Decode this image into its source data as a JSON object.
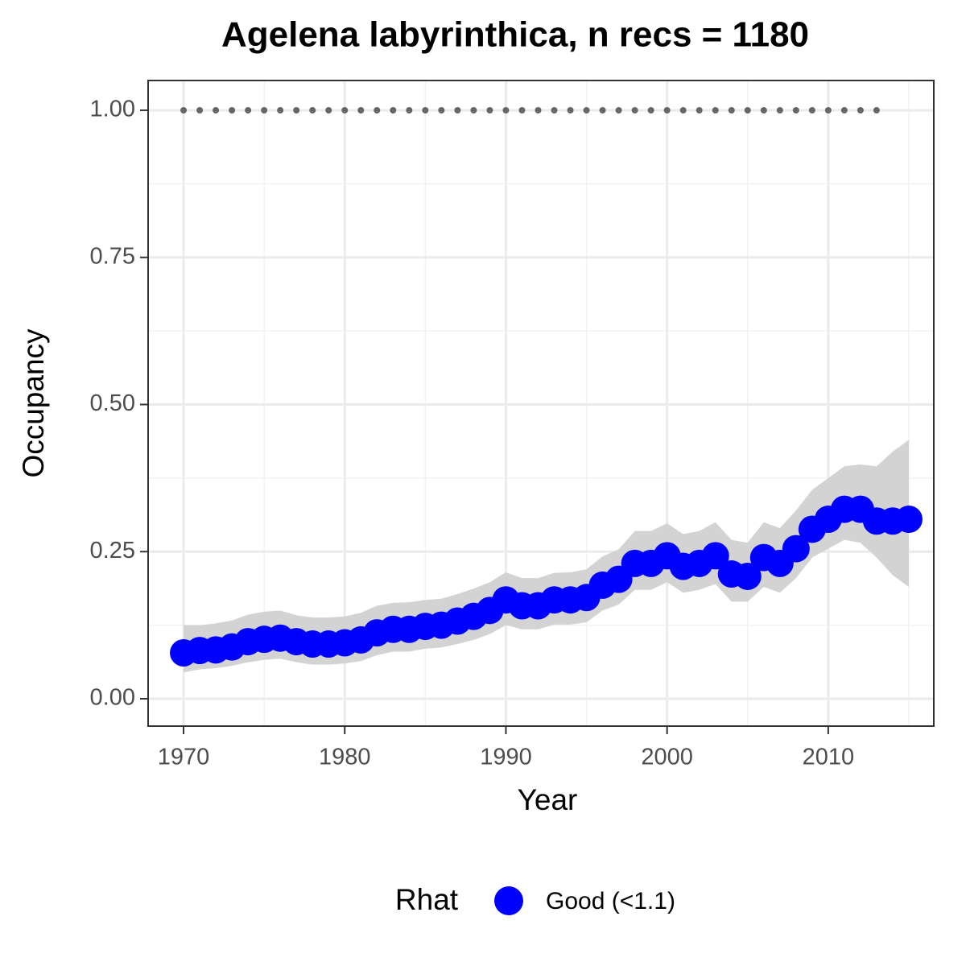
{
  "chart_data": {
    "type": "line",
    "title": "Agelena labyrinthica, n recs = 1180",
    "x_label": "Year",
    "y_label": "Occupancy",
    "x": [
      1970,
      1971,
      1972,
      1973,
      1974,
      1975,
      1976,
      1977,
      1978,
      1979,
      1980,
      1981,
      1982,
      1983,
      1984,
      1985,
      1986,
      1987,
      1988,
      1989,
      1990,
      1991,
      1992,
      1993,
      1994,
      1995,
      1996,
      1997,
      1998,
      1999,
      2000,
      2001,
      2002,
      2003,
      2004,
      2005,
      2006,
      2007,
      2008,
      2009,
      2010,
      2011,
      2012,
      2013,
      2014,
      2015
    ],
    "series": [
      {
        "name": "Good (<1.1)",
        "color": "#0000ff",
        "values": [
          0.078,
          0.082,
          0.083,
          0.088,
          0.097,
          0.101,
          0.103,
          0.097,
          0.093,
          0.093,
          0.095,
          0.1,
          0.112,
          0.118,
          0.118,
          0.123,
          0.125,
          0.132,
          0.14,
          0.15,
          0.168,
          0.158,
          0.158,
          0.168,
          0.168,
          0.172,
          0.193,
          0.203,
          0.23,
          0.23,
          0.243,
          0.225,
          0.23,
          0.243,
          0.212,
          0.208,
          0.24,
          0.23,
          0.255,
          0.288,
          0.305,
          0.322,
          0.322,
          0.302,
          0.302,
          0.305
        ],
        "lower": [
          0.045,
          0.05,
          0.052,
          0.056,
          0.062,
          0.066,
          0.068,
          0.062,
          0.058,
          0.058,
          0.06,
          0.064,
          0.074,
          0.08,
          0.08,
          0.085,
          0.087,
          0.093,
          0.1,
          0.11,
          0.125,
          0.118,
          0.118,
          0.126,
          0.126,
          0.13,
          0.15,
          0.16,
          0.185,
          0.185,
          0.198,
          0.18,
          0.185,
          0.195,
          0.165,
          0.165,
          0.19,
          0.18,
          0.205,
          0.24,
          0.255,
          0.27,
          0.265,
          0.24,
          0.21,
          0.19
        ],
        "upper": [
          0.125,
          0.125,
          0.128,
          0.133,
          0.143,
          0.148,
          0.15,
          0.142,
          0.138,
          0.138,
          0.14,
          0.146,
          0.158,
          0.163,
          0.164,
          0.168,
          0.17,
          0.178,
          0.187,
          0.198,
          0.215,
          0.205,
          0.205,
          0.214,
          0.215,
          0.22,
          0.242,
          0.254,
          0.285,
          0.285,
          0.298,
          0.28,
          0.285,
          0.3,
          0.27,
          0.265,
          0.3,
          0.29,
          0.32,
          0.355,
          0.375,
          0.395,
          0.398,
          0.395,
          0.42,
          0.44
        ]
      }
    ],
    "reference_points": {
      "color": "#666666",
      "x": [
        1970,
        1971,
        1972,
        1973,
        1974,
        1975,
        1976,
        1977,
        1978,
        1979,
        1980,
        1981,
        1982,
        1983,
        1984,
        1985,
        1986,
        1987,
        1988,
        1989,
        1990,
        1991,
        1992,
        1993,
        1994,
        1995,
        1996,
        1997,
        1998,
        1999,
        2000,
        2001,
        2002,
        2003,
        2004,
        2005,
        2006,
        2007,
        2008,
        2009,
        2010,
        2011,
        2012,
        2013
      ],
      "values": [
        1,
        1,
        1,
        1,
        1,
        1,
        1,
        1,
        1,
        1,
        1,
        1,
        1,
        1,
        1,
        1,
        1,
        1,
        1,
        1,
        1,
        1,
        1,
        1,
        1,
        1,
        1,
        1,
        1,
        1,
        1,
        1,
        1,
        1,
        1,
        1,
        1,
        1,
        1,
        1,
        1,
        1,
        1,
        1
      ]
    },
    "band_color": "#d3d3d3",
    "legend_title": "Rhat",
    "legend_position": "bottom",
    "xlim": [
      1967.8,
      2016.55
    ],
    "xticks": [
      1970,
      1980,
      1990,
      2000,
      2010
    ],
    "x_minor_ticks": [
      1975,
      1985,
      1995,
      2005,
      2015
    ],
    "ylim": [
      -0.0465,
      1.0506
    ],
    "yticks": [
      {
        "value": 0,
        "label": "0.00"
      },
      {
        "value": 0.25,
        "label": "0.25"
      },
      {
        "value": 0.5,
        "label": "0.50"
      },
      {
        "value": 0.75,
        "label": "0.75"
      },
      {
        "value": 1,
        "label": "1.00"
      }
    ],
    "y_minor_ticks": [
      0.125,
      0.375,
      0.625,
      0.875
    ],
    "grid": true
  }
}
